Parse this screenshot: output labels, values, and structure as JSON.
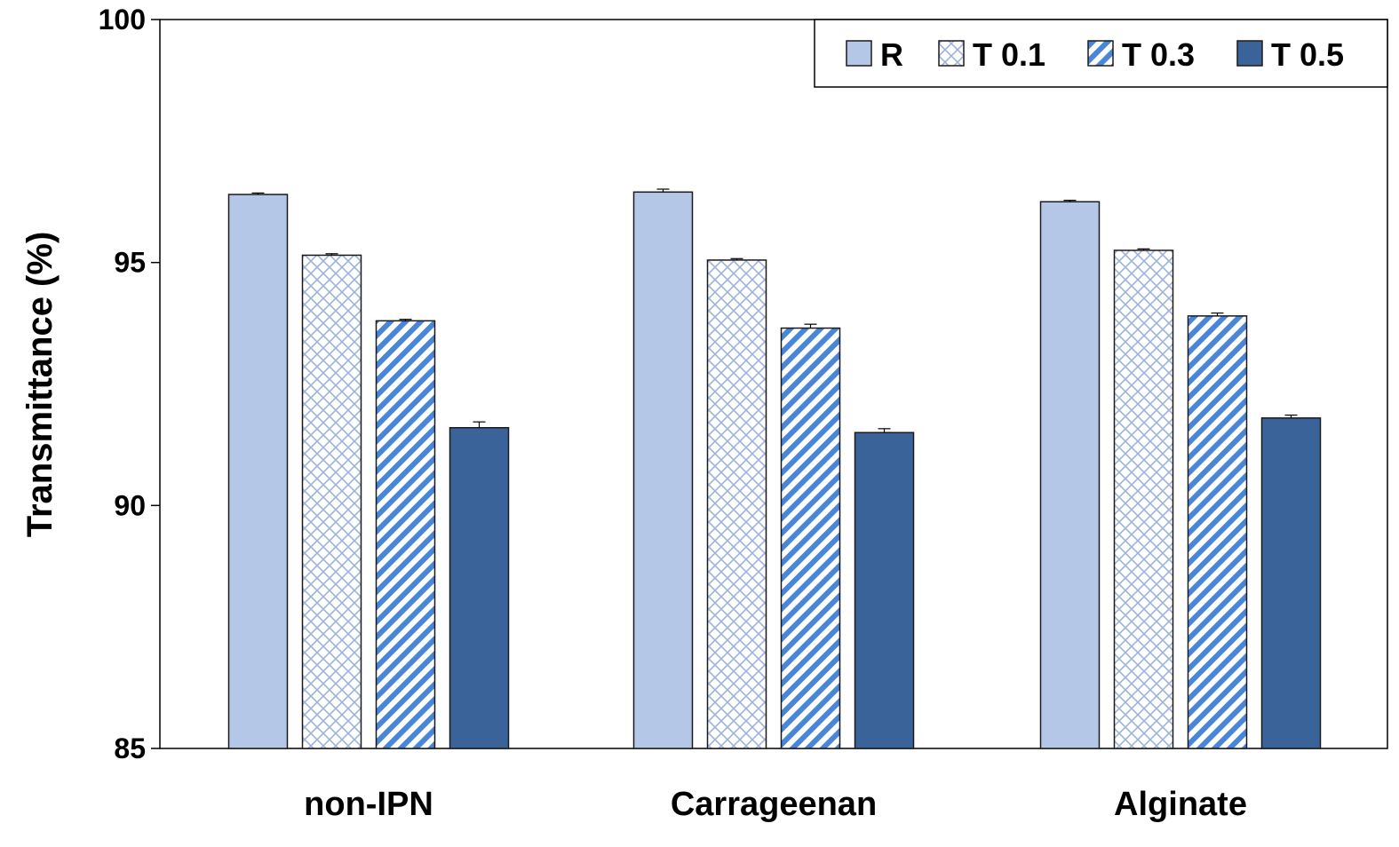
{
  "chart_data": {
    "type": "bar",
    "title": "",
    "xlabel": "",
    "ylabel": "Transmittance  (%)",
    "ylim": [
      85,
      100
    ],
    "yticks": [
      "85",
      "90",
      "95",
      "100"
    ],
    "categories": [
      "non-IPN",
      "Carrageenan",
      "Alginate"
    ],
    "legend_position": "top-right",
    "grid": false,
    "series": [
      {
        "name": "R",
        "values": [
          96.4,
          96.45,
          96.25
        ],
        "errors": [
          0.03,
          0.06,
          0.03
        ],
        "fill": "solid",
        "color": "#b4c7e7"
      },
      {
        "name": "T 0.1",
        "values": [
          95.15,
          95.05,
          95.25
        ],
        "errors": [
          0.03,
          0.03,
          0.03
        ],
        "fill": "crosshatch",
        "color": "#8faadc"
      },
      {
        "name": "T 0.3",
        "values": [
          93.8,
          93.65,
          93.9
        ],
        "errors": [
          0.03,
          0.08,
          0.06
        ],
        "fill": "diagonal",
        "color": "#4a86d8"
      },
      {
        "name": "T 0.5",
        "values": [
          91.6,
          91.5,
          91.8
        ],
        "errors": [
          0.12,
          0.08,
          0.06
        ],
        "fill": "solid",
        "color": "#3a6499"
      }
    ]
  }
}
